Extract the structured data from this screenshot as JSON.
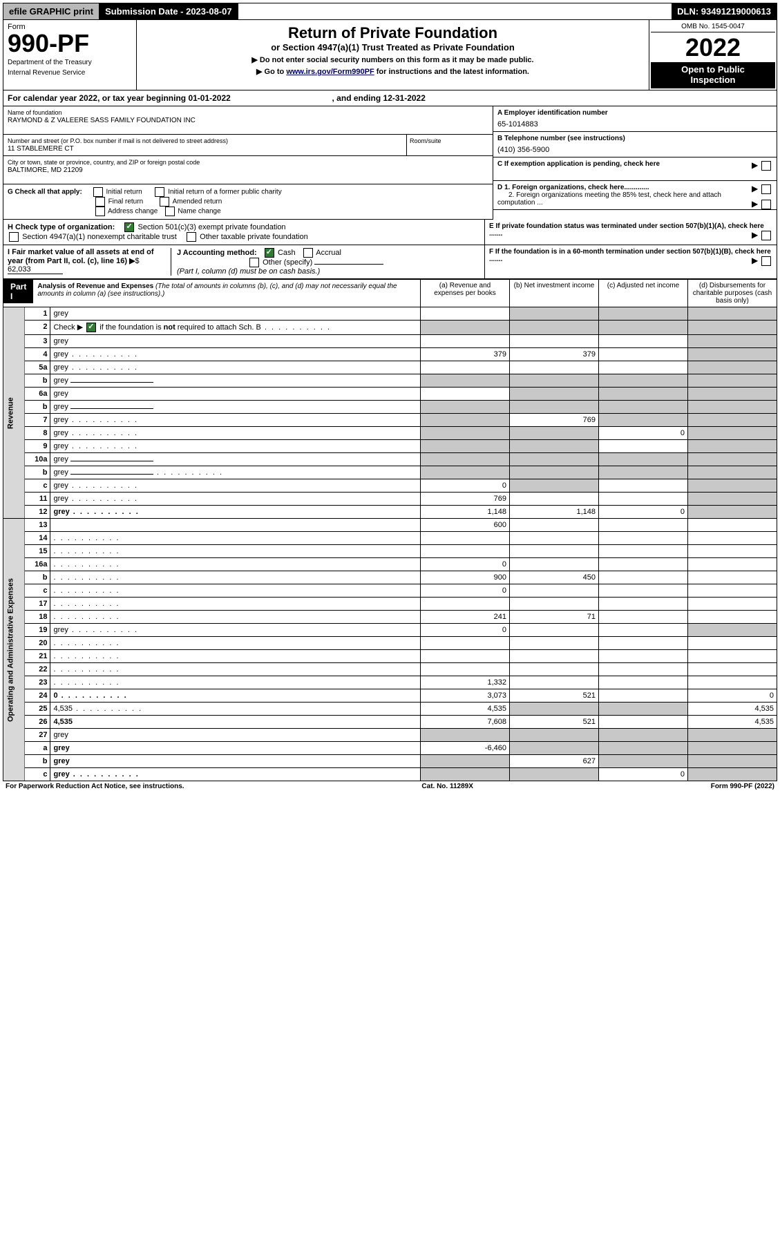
{
  "topbar": {
    "efile": "efile GRAPHIC print",
    "submission": "Submission Date - 2023-08-07",
    "dln": "DLN: 93491219000613"
  },
  "header": {
    "form_word": "Form",
    "form_num": "990-PF",
    "dept1": "Department of the Treasury",
    "dept2": "Internal Revenue Service",
    "title": "Return of Private Foundation",
    "subtitle": "or Section 4947(a)(1) Trust Treated as Private Foundation",
    "instr1": "▶ Do not enter social security numbers on this form as it may be made public.",
    "instr2_pre": "▶ Go to ",
    "instr2_link": "www.irs.gov/Form990PF",
    "instr2_post": " for instructions and the latest information.",
    "omb": "OMB No. 1545-0047",
    "year": "2022",
    "inspect1": "Open to Public",
    "inspect2": "Inspection"
  },
  "cal": {
    "text_a": "For calendar year 2022, or tax year beginning 01-01-2022",
    "text_b": ", and ending 12-31-2022"
  },
  "info": {
    "name_lbl": "Name of foundation",
    "name_val": "RAYMOND & Z VALEERE SASS FAMILY FOUNDATION INC",
    "addr_lbl": "Number and street (or P.O. box number if mail is not delivered to street address)",
    "addr_room_lbl": "Room/suite",
    "addr_val": "11 STABLEMERE CT",
    "city_lbl": "City or town, state or province, country, and ZIP or foreign postal code",
    "city_val": "BALTIMORE, MD  21209",
    "a_lbl": "A Employer identification number",
    "a_val": "65-1014883",
    "b_lbl": "B Telephone number (see instructions)",
    "b_val": "(410) 356-5900",
    "c_lbl": "C If exemption application is pending, check here",
    "d1_lbl": "D 1. Foreign organizations, check here.............",
    "d2_lbl": "2. Foreign organizations meeting the 85% test, check here and attach computation ...",
    "e_lbl": "E  If private foundation status was terminated under section 507(b)(1)(A), check here .......",
    "f_lbl": "F  If the foundation is in a 60-month termination under section 507(b)(1)(B), check here .......",
    "g_lbl": "G Check all that apply:",
    "g_opts": {
      "initial": "Initial return",
      "initial_former": "Initial return of a former public charity",
      "final": "Final return",
      "amended": "Amended return",
      "addr_change": "Address change",
      "name_change": "Name change"
    },
    "h_lbl": "H Check type of organization:",
    "h_501c3": "Section 501(c)(3) exempt private foundation",
    "h_4947": "Section 4947(a)(1) nonexempt charitable trust",
    "h_other": "Other taxable private foundation",
    "i_lbl": "I Fair market value of all assets at end of year (from Part II, col. (c), line 16)",
    "i_val": "62,033",
    "j_lbl": "J Accounting method:",
    "j_cash": "Cash",
    "j_accrual": "Accrual",
    "j_other": "Other (specify)",
    "j_note": "(Part I, column (d) must be on cash basis.)"
  },
  "part1": {
    "label": "Part I",
    "title": "Analysis of Revenue and Expenses",
    "title_note": " (The total of amounts in columns (b), (c), and (d) may not necessarily equal the amounts in column (a) (see instructions).)",
    "col_a": "(a)   Revenue and expenses per books",
    "col_b": "(b)   Net investment income",
    "col_c": "(c)   Adjusted net income",
    "col_d": "(d)  Disbursements for charitable purposes (cash basis only)"
  },
  "revenue_label": "Revenue",
  "expenses_label": "Operating and Administrative Expenses",
  "rows": [
    {
      "n": "1",
      "d": "grey",
      "a": "",
      "b": "grey",
      "c": "grey"
    },
    {
      "n": "2",
      "d": "grey",
      "dots": true,
      "a": "grey",
      "b": "grey",
      "c": "grey",
      "check": true
    },
    {
      "n": "3",
      "d": "grey",
      "a": "",
      "b": "",
      "c": ""
    },
    {
      "n": "4",
      "d": "grey",
      "dots": true,
      "a": "379",
      "b": "379",
      "c": ""
    },
    {
      "n": "5a",
      "d": "grey",
      "dots": true,
      "a": "",
      "b": "",
      "c": ""
    },
    {
      "n": "b",
      "d": "grey",
      "uline": true,
      "a": "grey",
      "b": "grey",
      "c": "grey"
    },
    {
      "n": "6a",
      "d": "grey",
      "a": "",
      "b": "grey",
      "c": "grey"
    },
    {
      "n": "b",
      "d": "grey",
      "uline": true,
      "a": "grey",
      "b": "grey",
      "c": "grey"
    },
    {
      "n": "7",
      "d": "grey",
      "dots": true,
      "a": "grey",
      "b": "769",
      "c": "grey"
    },
    {
      "n": "8",
      "d": "grey",
      "dots": true,
      "a": "grey",
      "b": "grey",
      "c": "0"
    },
    {
      "n": "9",
      "d": "grey",
      "dots": true,
      "a": "grey",
      "b": "grey",
      "c": ""
    },
    {
      "n": "10a",
      "d": "grey",
      "uline": true,
      "a": "grey",
      "b": "grey",
      "c": "grey"
    },
    {
      "n": "b",
      "d": "grey",
      "dots": true,
      "uline": true,
      "a": "grey",
      "b": "grey",
      "c": "grey"
    },
    {
      "n": "c",
      "d": "grey",
      "dots": true,
      "a": "0",
      "b": "grey",
      "c": ""
    },
    {
      "n": "11",
      "d": "grey",
      "dots": true,
      "a": "769",
      "b": "",
      "c": ""
    },
    {
      "n": "12",
      "d": "grey",
      "dots": true,
      "bold": true,
      "a": "1,148",
      "b": "1,148",
      "c": "0"
    }
  ],
  "exp_rows": [
    {
      "n": "13",
      "d": "",
      "a": "600",
      "b": "",
      "c": ""
    },
    {
      "n": "14",
      "d": "",
      "dots": true,
      "a": "",
      "b": "",
      "c": ""
    },
    {
      "n": "15",
      "d": "",
      "dots": true,
      "a": "",
      "b": "",
      "c": ""
    },
    {
      "n": "16a",
      "d": "",
      "dots": true,
      "a": "0",
      "b": "",
      "c": ""
    },
    {
      "n": "b",
      "d": "",
      "dots": true,
      "a": "900",
      "b": "450",
      "c": ""
    },
    {
      "n": "c",
      "d": "",
      "dots": true,
      "a": "0",
      "b": "",
      "c": ""
    },
    {
      "n": "17",
      "d": "",
      "dots": true,
      "a": "",
      "b": "",
      "c": ""
    },
    {
      "n": "18",
      "d": "",
      "dots": true,
      "a": "241",
      "b": "71",
      "c": ""
    },
    {
      "n": "19",
      "d": "grey",
      "dots": true,
      "a": "0",
      "b": "",
      "c": ""
    },
    {
      "n": "20",
      "d": "",
      "dots": true,
      "a": "",
      "b": "",
      "c": ""
    },
    {
      "n": "21",
      "d": "",
      "dots": true,
      "a": "",
      "b": "",
      "c": ""
    },
    {
      "n": "22",
      "d": "",
      "dots": true,
      "a": "",
      "b": "",
      "c": ""
    },
    {
      "n": "23",
      "d": "",
      "dots": true,
      "a": "1,332",
      "b": "",
      "c": ""
    },
    {
      "n": "24",
      "d": "0",
      "dots": true,
      "bold": true,
      "a": "3,073",
      "b": "521",
      "c": ""
    },
    {
      "n": "25",
      "d": "4,535",
      "dots": true,
      "a": "4,535",
      "b": "grey",
      "c": "grey"
    },
    {
      "n": "26",
      "d": "4,535",
      "bold": true,
      "a": "7,608",
      "b": "521",
      "c": ""
    },
    {
      "n": "27",
      "d": "grey",
      "a": "grey",
      "b": "grey",
      "c": "grey"
    },
    {
      "n": "a",
      "d": "grey",
      "bold": true,
      "a": "-6,460",
      "b": "grey",
      "c": "grey"
    },
    {
      "n": "b",
      "d": "grey",
      "bold": true,
      "a": "grey",
      "b": "627",
      "c": "grey"
    },
    {
      "n": "c",
      "d": "grey",
      "dots": true,
      "bold": true,
      "a": "grey",
      "b": "grey",
      "c": "0"
    }
  ],
  "footer": {
    "left": "For Paperwork Reduction Act Notice, see instructions.",
    "mid": "Cat. No. 11289X",
    "right": "Form 990-PF (2022)"
  }
}
